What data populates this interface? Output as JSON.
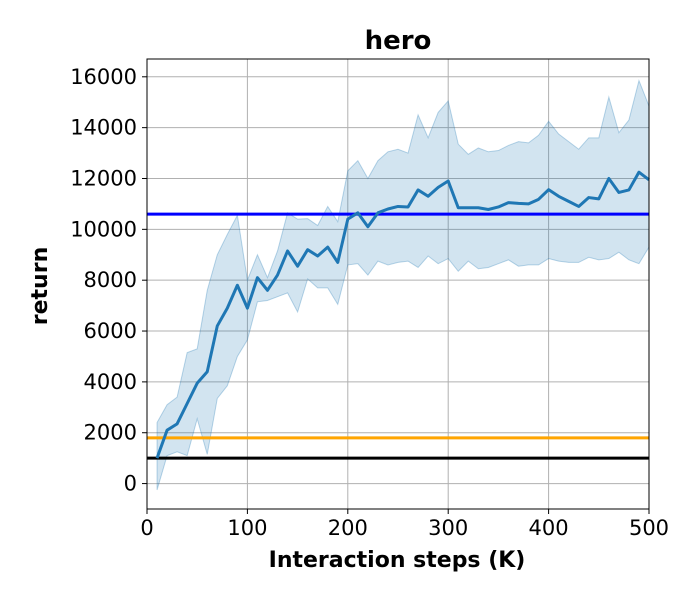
{
  "chart_data": {
    "type": "line",
    "title": "hero",
    "xlabel": "Interaction steps (K)",
    "ylabel": "return",
    "xlim": [
      0,
      500
    ],
    "ylim": [
      -1000,
      16700
    ],
    "x_ticks": [
      "0",
      "100",
      "200",
      "300",
      "400",
      "500"
    ],
    "y_ticks": [
      "0",
      "2000",
      "4000",
      "6000",
      "8000",
      "10000",
      "12000",
      "14000",
      "16000"
    ],
    "grid": true,
    "legend": "none",
    "colors": {
      "mean_line": "#1f77b4",
      "band": "#1f77b4",
      "ref_blue": "#0000ff",
      "ref_orange": "#ffa500",
      "ref_black": "#000000"
    },
    "series": [
      {
        "x": [
          10,
          20,
          30,
          40,
          50,
          60,
          70,
          80,
          90,
          100,
          110,
          120,
          130,
          140,
          150,
          160,
          170,
          180,
          190,
          200,
          210,
          220,
          230,
          240,
          250,
          260,
          270,
          280,
          290,
          300,
          310,
          320,
          330,
          340,
          350,
          360,
          370,
          380,
          390,
          400,
          410,
          420,
          430,
          440,
          450,
          460,
          470,
          480,
          490,
          500
        ],
        "mean": [
          1000,
          2100,
          2350,
          3150,
          3950,
          4400,
          6200,
          6900,
          7800,
          6900,
          8100,
          7600,
          8200,
          9150,
          8550,
          9200,
          8950,
          9300,
          8700,
          10400,
          10650,
          10100,
          10650,
          10800,
          10900,
          10880,
          11550,
          11300,
          11650,
          11900,
          10850,
          10850,
          10850,
          10780,
          10880,
          11050,
          11020,
          11000,
          11180,
          11560,
          11300,
          11100,
          10900,
          11250,
          11200,
          12000,
          11450,
          11550,
          12250,
          11950
        ],
        "upper": [
          2400,
          3100,
          3400,
          5150,
          5300,
          7600,
          9000,
          9800,
          10550,
          8000,
          9000,
          8100,
          9150,
          10650,
          10400,
          10420,
          10150,
          10900,
          10300,
          12300,
          12700,
          12000,
          12700,
          13050,
          13150,
          13000,
          14500,
          13600,
          14600,
          15050,
          13350,
          12950,
          13200,
          13050,
          13100,
          13300,
          13450,
          13400,
          13700,
          14250,
          13750,
          13450,
          13150,
          13600,
          13600,
          15200,
          13800,
          14300,
          15850,
          14850
        ],
        "lower": [
          -250,
          1100,
          1250,
          1100,
          2550,
          1150,
          3350,
          3850,
          5000,
          5650,
          7150,
          7200,
          7350,
          7500,
          6750,
          8050,
          7700,
          7700,
          7050,
          8600,
          8650,
          8200,
          8750,
          8600,
          8700,
          8750,
          8500,
          8950,
          8650,
          8850,
          8350,
          8750,
          8450,
          8500,
          8650,
          8800,
          8550,
          8600,
          8600,
          8850,
          8750,
          8700,
          8700,
          8900,
          8800,
          8850,
          9100,
          8800,
          8650,
          9300
        ]
      }
    ],
    "reference_lines": [
      {
        "y": 10600,
        "color": "#0000ff"
      },
      {
        "y": 1800,
        "color": "#ffa500"
      },
      {
        "y": 1000,
        "color": "#000000"
      }
    ]
  }
}
